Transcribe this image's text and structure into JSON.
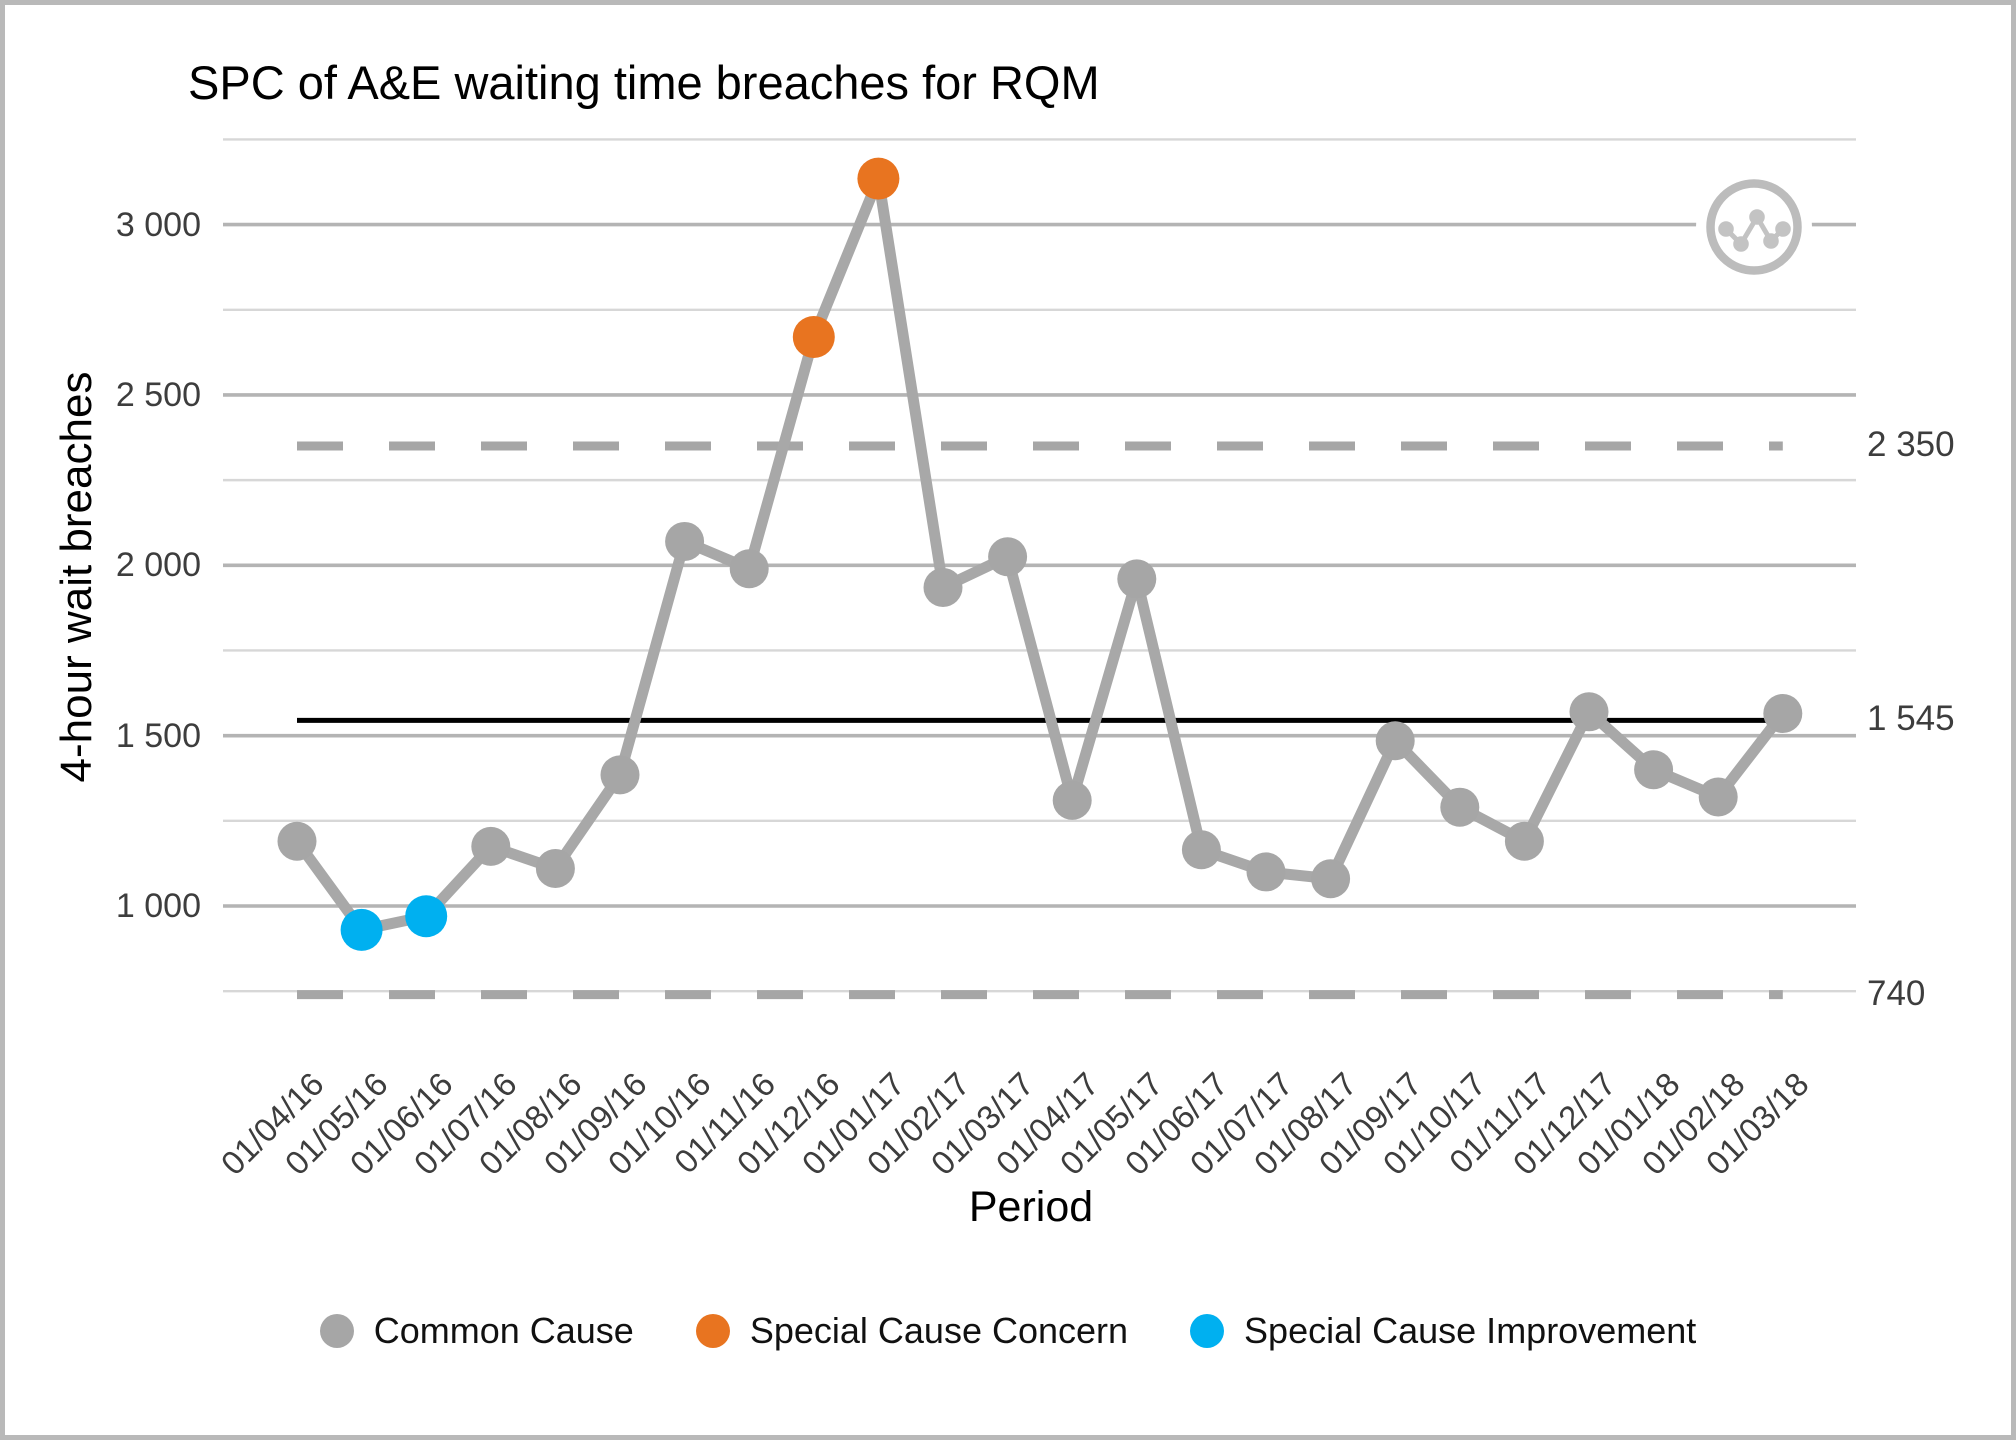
{
  "chart": {
    "title": "SPC of A&E waiting time breaches for RQM",
    "ylabel": "4-hour wait breaches",
    "xlabel": "Period"
  },
  "chart_data": {
    "type": "line",
    "title": "SPC of A&E waiting time breaches for RQM",
    "xlabel": "Period",
    "ylabel": "4-hour wait breaches",
    "categories": [
      "01/04/16",
      "01/05/16",
      "01/06/16",
      "01/07/16",
      "01/08/16",
      "01/09/16",
      "01/10/16",
      "01/11/16",
      "01/12/16",
      "01/01/17",
      "01/02/17",
      "01/03/17",
      "01/04/17",
      "01/05/17",
      "01/06/17",
      "01/07/17",
      "01/08/17",
      "01/09/17",
      "01/10/17",
      "01/11/17",
      "01/12/17",
      "01/01/18",
      "01/02/18",
      "01/03/18"
    ],
    "series": [
      {
        "name": "4-hour wait breaches",
        "values": [
          1190,
          930,
          970,
          1175,
          1110,
          1385,
          2070,
          1990,
          2670,
          3135,
          1935,
          2025,
          1310,
          1960,
          1165,
          1100,
          1080,
          1485,
          1290,
          1190,
          1570,
          1400,
          1320,
          1565
        ]
      }
    ],
    "point_types": [
      "common",
      "improvement",
      "improvement",
      "common",
      "common",
      "common",
      "common",
      "common",
      "concern",
      "concern",
      "common",
      "common",
      "common",
      "common",
      "common",
      "common",
      "common",
      "common",
      "common",
      "common",
      "common",
      "common",
      "common",
      "common"
    ],
    "yticks": [
      {
        "value": 1000,
        "label": "1 000"
      },
      {
        "value": 1500,
        "label": "1 500"
      },
      {
        "value": 2000,
        "label": "2 000"
      },
      {
        "value": 2500,
        "label": "2 500"
      },
      {
        "value": 3000,
        "label": "3 000"
      }
    ],
    "minor_gridlines": [
      750,
      1250,
      1750,
      2250,
      2750,
      3250
    ],
    "ylim": [
      740,
      3250
    ],
    "grid": "horizontal only",
    "legend_position": "bottom",
    "reference_lines": {
      "mean": {
        "value": 1545,
        "label": "1 545",
        "style": "solid-black"
      },
      "ucl": {
        "value": 2350,
        "label": "2 350",
        "style": "dashed-gray"
      },
      "lcl": {
        "value": 740,
        "label": "740",
        "style": "dashed-gray"
      }
    }
  },
  "legend": {
    "items": [
      {
        "label": "Common Cause",
        "color_key": "common"
      },
      {
        "label": "Special Cause Concern",
        "color_key": "concern"
      },
      {
        "label": "Special Cause Improvement",
        "color_key": "improvement"
      }
    ]
  },
  "colors": {
    "common": "#a6a6a6",
    "concern": "#e87420",
    "improvement": "#00b0f0",
    "series_line": "#a8a8a8",
    "mean_line": "#000000",
    "limit_line": "#a6a6a6",
    "grid_major": "#b4b4b4",
    "grid_minor": "#d7d7d7",
    "icon_gray": "#c3c3c3",
    "icon_ring": "#bcbcbc",
    "tick_text": "#3d3d3d"
  },
  "icon": {
    "name": "run-chart-icon"
  }
}
